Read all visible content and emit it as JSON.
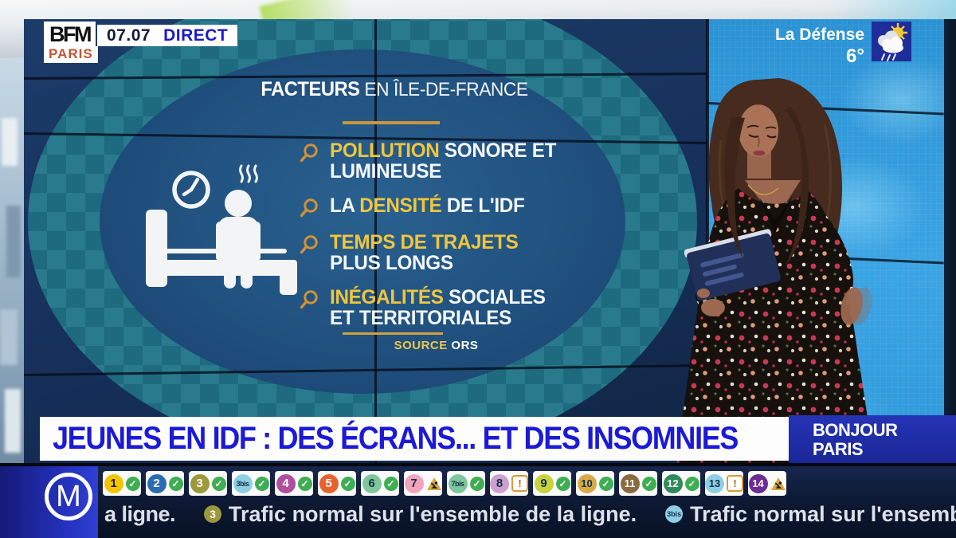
{
  "channel": {
    "logo_main": "BFM",
    "logo_sub": "PARIS",
    "time": "07.07",
    "live": "DIRECT"
  },
  "weather": {
    "location": "La Défense",
    "temperature": "6°",
    "icon": "sun-rain-cloud-icon"
  },
  "board": {
    "title_strong": "FACTEURS",
    "title_rest": " EN ÎLE-DE-FRANCE",
    "bullet_icon": "magnifier-icon",
    "pictogram": "insomnia-person-on-bed-icon",
    "items": [
      {
        "pre": "",
        "highlight": "POLLUTION",
        "rest": " SONORE ET LUMINEUSE"
      },
      {
        "pre": "LA ",
        "highlight": "DENSITÉ",
        "rest": " DE L'IDF"
      },
      {
        "pre": "",
        "highlight": "TEMPS DE TRAJETS",
        "rest": " PLUS LONGS"
      },
      {
        "pre": "",
        "highlight": "INÉGALITÉS",
        "rest": " SOCIALES ET TERRITORIALES"
      }
    ],
    "source_label": "SOURCE",
    "source_value": " ORS"
  },
  "lower_third": {
    "headline": "JEUNES EN IDF : DES ÉCRANS... ET DES INSOMNIES",
    "program": [
      "BONJOUR",
      "PARIS"
    ]
  },
  "metro": {
    "logo_letter": "M",
    "lines": [
      {
        "name": "1",
        "bg": "#f2c500",
        "fg": "#1a1a1a",
        "status": "ok"
      },
      {
        "name": "2",
        "bg": "#2b6bb2",
        "fg": "#ffffff",
        "status": "ok"
      },
      {
        "name": "3",
        "bg": "#9b993b",
        "fg": "#ffffff",
        "status": "ok"
      },
      {
        "name": "3bis",
        "bg": "#8ecfe4",
        "fg": "#12304a",
        "status": "ok"
      },
      {
        "name": "4",
        "bg": "#b0509c",
        "fg": "#ffffff",
        "status": "ok"
      },
      {
        "name": "5",
        "bg": "#e8622e",
        "fg": "#ffffff",
        "status": "ok"
      },
      {
        "name": "6",
        "bg": "#7fc79b",
        "fg": "#12304a",
        "status": "ok"
      },
      {
        "name": "7",
        "bg": "#f2a4bd",
        "fg": "#12304a",
        "status": "works"
      },
      {
        "name": "7bis",
        "bg": "#7fc79b",
        "fg": "#12304a",
        "status": "ok"
      },
      {
        "name": "8",
        "bg": "#cf9fd0",
        "fg": "#12304a",
        "status": "alert"
      },
      {
        "name": "9",
        "bg": "#c9d23d",
        "fg": "#12304a",
        "status": "ok"
      },
      {
        "name": "10",
        "bg": "#d8a946",
        "fg": "#12304a",
        "status": "ok"
      },
      {
        "name": "11",
        "bg": "#8c6a3f",
        "fg": "#ffffff",
        "status": "ok"
      },
      {
        "name": "12",
        "bg": "#2f8a5c",
        "fg": "#ffffff",
        "status": "ok"
      },
      {
        "name": "13",
        "bg": "#8ecfe4",
        "fg": "#12304a",
        "status": "alert"
      },
      {
        "name": "14",
        "bg": "#6b2d91",
        "fg": "#ffffff",
        "status": "works"
      }
    ],
    "ticker": {
      "lead": "a ligne.",
      "items": [
        {
          "line": "3",
          "bg": "#9b993b",
          "fg": "#ffffff",
          "text": "Trafic normal sur l'ensemble de la ligne."
        },
        {
          "line": "3bis",
          "bg": "#8ecfe4",
          "fg": "#12304a",
          "text": "Trafic normal sur l'ensemble de la li"
        }
      ]
    }
  },
  "colors": {
    "accent_yellow": "#f0c63c",
    "magnifier_orange": "#cf9238",
    "headline_blue": "#1b1ad6",
    "live_blue": "#1a1acf",
    "bfm_paris_orange": "#c2532f",
    "status_ok_green": "#3fae52",
    "status_warn_orange": "#d89a3c",
    "board_circle_blue": "#215580",
    "teal_band": "#1e6a7e"
  }
}
